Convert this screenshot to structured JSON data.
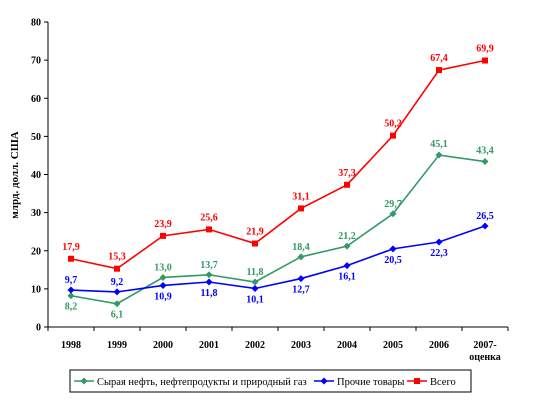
{
  "chart_data": {
    "type": "line",
    "title": "",
    "xlabel": "",
    "ylabel": "млрд. долл. США",
    "ylim": [
      0,
      80
    ],
    "yticks": [
      0,
      10,
      20,
      30,
      40,
      50,
      60,
      70,
      80
    ],
    "grid": false,
    "legend_position": "bottom",
    "categories": [
      "1998",
      "1999",
      "2000",
      "2001",
      "2002",
      "2003",
      "2004",
      "2005",
      "2006",
      "2007-"
    ],
    "last_category_line2": "оценка",
    "series": [
      {
        "name": "Сырая нефть, нефтепродукты и природный газ",
        "color": "#339966",
        "marker": "diamond",
        "values": [
          8.2,
          6.1,
          13.0,
          13.7,
          11.8,
          18.4,
          21.2,
          29.7,
          45.1,
          43.4
        ],
        "labels": [
          "8,2",
          "6,1",
          "13,0",
          "13,7",
          "11,8",
          "18,4",
          "21,2",
          "29,7",
          "45,1",
          "43,4"
        ]
      },
      {
        "name": "Прочие товары",
        "color": "#0000ff",
        "marker": "diamond",
        "values": [
          9.7,
          9.2,
          10.9,
          11.8,
          10.1,
          12.7,
          16.1,
          20.5,
          22.3,
          26.5
        ],
        "labels": [
          "9,7",
          "9,2",
          "10,9",
          "11,8",
          "10,1",
          "12,7",
          "16,1",
          "20,5",
          "22,3",
          "26,5"
        ]
      },
      {
        "name": "Всего",
        "color": "#ff0000",
        "marker": "square",
        "values": [
          17.9,
          15.3,
          23.9,
          25.6,
          21.9,
          31.1,
          37.3,
          50.2,
          67.4,
          69.9
        ],
        "labels": [
          "17,9",
          "15,3",
          "23,9",
          "25,6",
          "21,9",
          "31,1",
          "37,3",
          "50,2",
          "67,4",
          "69,9"
        ]
      }
    ]
  }
}
